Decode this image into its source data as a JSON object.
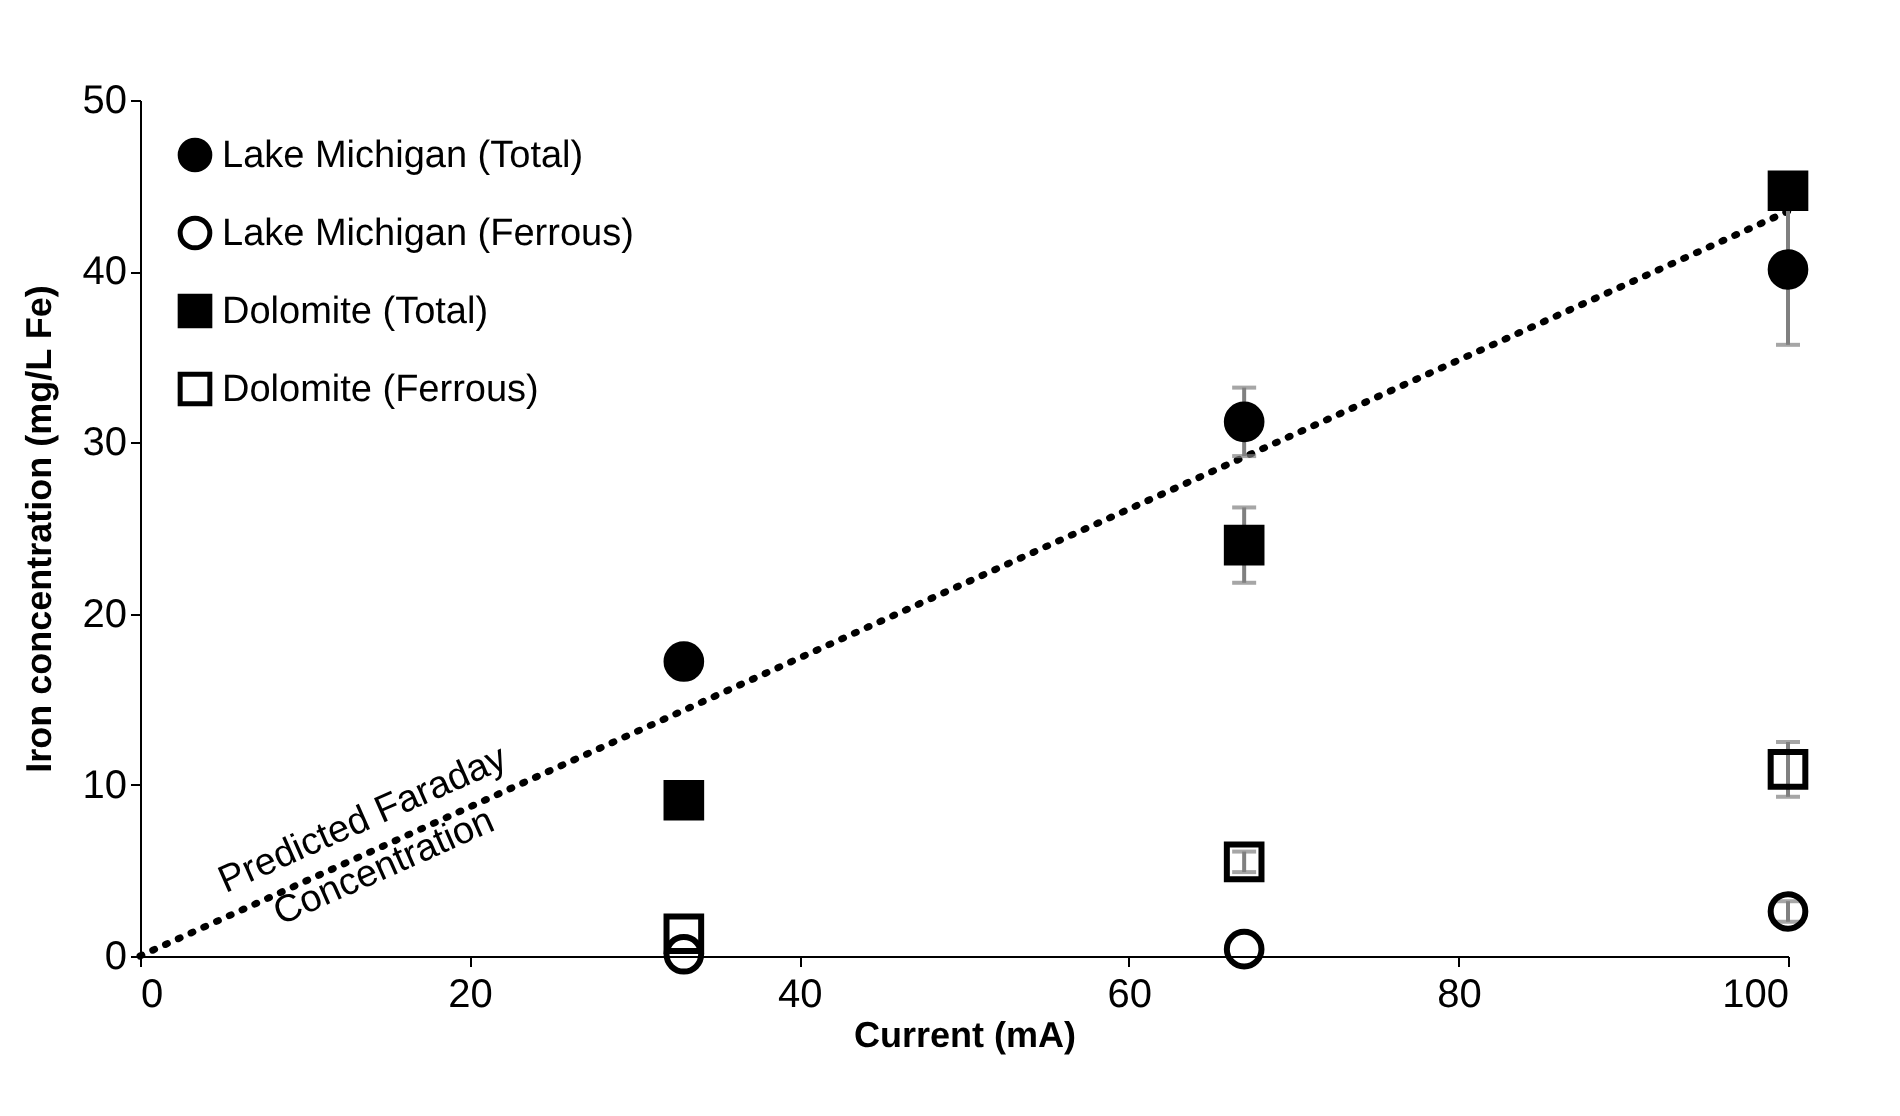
{
  "chart_data": {
    "type": "scatter",
    "xlabel": "Current (mA)",
    "ylabel": "Iron concentration (mg/L Fe)",
    "x": [
      33,
      67,
      100
    ],
    "xlim": [
      0,
      100
    ],
    "xticks": [
      0,
      20,
      40,
      60,
      80,
      100
    ],
    "ylim": [
      0,
      50
    ],
    "yticks": [
      0,
      10,
      20,
      30,
      40,
      50
    ],
    "grid": false,
    "legend": "top left",
    "series": [
      {
        "name": "Lake Michigan (Total)",
        "color": "#000000",
        "marker": "circle",
        "values": [
          17.2,
          31.2,
          40.1
        ],
        "errors": [
          null,
          2.0,
          4.4
        ]
      },
      {
        "name": "Lake Michigan (Ferrous)",
        "color": "#000000",
        "marker": "circle-open",
        "values": [
          0.1,
          0.4,
          2.6
        ],
        "errors": [
          null,
          null,
          0.6
        ]
      },
      {
        "name": "Dolomite (Total)",
        "color": "#000000",
        "marker": "square",
        "values": [
          9.1,
          24.0,
          44.7
        ],
        "errors": [
          null,
          2.2,
          null
        ]
      },
      {
        "name": "Dolomite (Ferrous)",
        "color": "#000000",
        "marker": "square-open",
        "values": [
          1.3,
          5.5,
          10.9
        ],
        "errors": [
          null,
          0.6,
          1.6
        ]
      },
      {
        "type": "line",
        "x": [
          0,
          100
        ],
        "values": [
          0,
          43.5
        ],
        "color": "#000000",
        "line_style": "dotted",
        "marker": "none"
      }
    ],
    "annotations": [
      "Predicted Faraday Concentration"
    ]
  }
}
